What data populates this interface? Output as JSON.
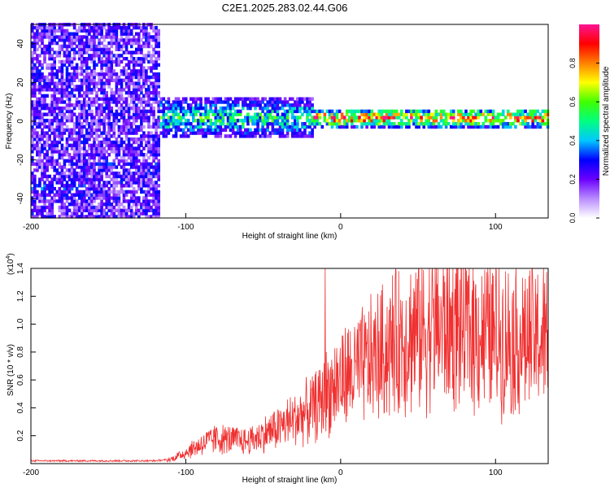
{
  "title": "C2E1.2025.283.02.44.G06",
  "chart_data": [
    {
      "type": "heatmap",
      "xlabel": "Height of straight line (km)",
      "ylabel": "Frequency (Hz)",
      "xlim": [
        -200,
        134
      ],
      "ylim": [
        -50,
        50
      ],
      "xticks": [
        -200,
        -100,
        0,
        100
      ],
      "yticks": [
        -40,
        -20,
        0,
        20,
        40
      ],
      "colorbar": {
        "label": "Normalized spectral amplitude",
        "range": [
          0,
          1
        ],
        "ticks": [
          0.0,
          0.2,
          0.4,
          0.6,
          0.8
        ],
        "colors": [
          "#ffffff",
          "#b98cff",
          "#6a00ff",
          "#0000ff",
          "#00c8ff",
          "#00ff80",
          "#40ff00",
          "#ffff00",
          "#ff8000",
          "#ff0000",
          "#ff1493"
        ]
      },
      "description_bands": [
        {
          "x_start": -200,
          "x_end": -118,
          "freq_center": 0,
          "freq_spread": 50,
          "amplitude": 0.2
        },
        {
          "x_start": -200,
          "x_end": -165,
          "freq_center": -35,
          "freq_spread": 4,
          "amplitude": 0.35
        },
        {
          "x_start": -160,
          "x_end": -118,
          "freq_center": -23,
          "freq_spread": 2,
          "amplitude": 0.3
        },
        {
          "x_start": -118,
          "x_end": -18,
          "freq_center": 1,
          "freq_spread": 9,
          "amplitude": 0.55
        },
        {
          "x_start": -18,
          "x_end": 134,
          "freq_center": 1,
          "freq_spread": 4,
          "amplitude": 0.9
        }
      ]
    },
    {
      "type": "line",
      "xlabel": "Height of straight line (km)",
      "ylabel": "SNR (10 * v/v)",
      "exponent_label": "(x10",
      "exponent_power": "4",
      "exponent_close": ")",
      "xlim": [
        -200,
        134
      ],
      "ylim": [
        0,
        1.4
      ],
      "xticks": [
        -200,
        -100,
        0,
        100
      ],
      "yticks": [
        0.2,
        0.4,
        0.6,
        0.8,
        1.0,
        1.2,
        1.4
      ],
      "series": [
        {
          "name": "SNR",
          "color": "#f03030",
          "x": [
            -200,
            -180,
            -160,
            -140,
            -120,
            -110,
            -100,
            -90,
            -80,
            -70,
            -60,
            -50,
            -40,
            -30,
            -20,
            -12,
            -10,
            -5,
            0,
            10,
            20,
            30,
            40,
            50,
            60,
            70,
            80,
            90,
            100,
            110,
            120,
            134
          ],
          "y": [
            0.02,
            0.02,
            0.02,
            0.02,
            0.02,
            0.03,
            0.08,
            0.14,
            0.18,
            0.17,
            0.16,
            0.21,
            0.26,
            0.32,
            0.38,
            0.45,
            0.5,
            0.55,
            0.6,
            0.66,
            0.74,
            0.82,
            0.9,
            0.95,
            0.98,
            0.97,
            0.98,
            0.93,
            0.92,
            0.9,
            0.88,
            0.9
          ],
          "peaks": [
            {
              "x": -10,
              "y": 1.4
            }
          ]
        }
      ]
    }
  ]
}
